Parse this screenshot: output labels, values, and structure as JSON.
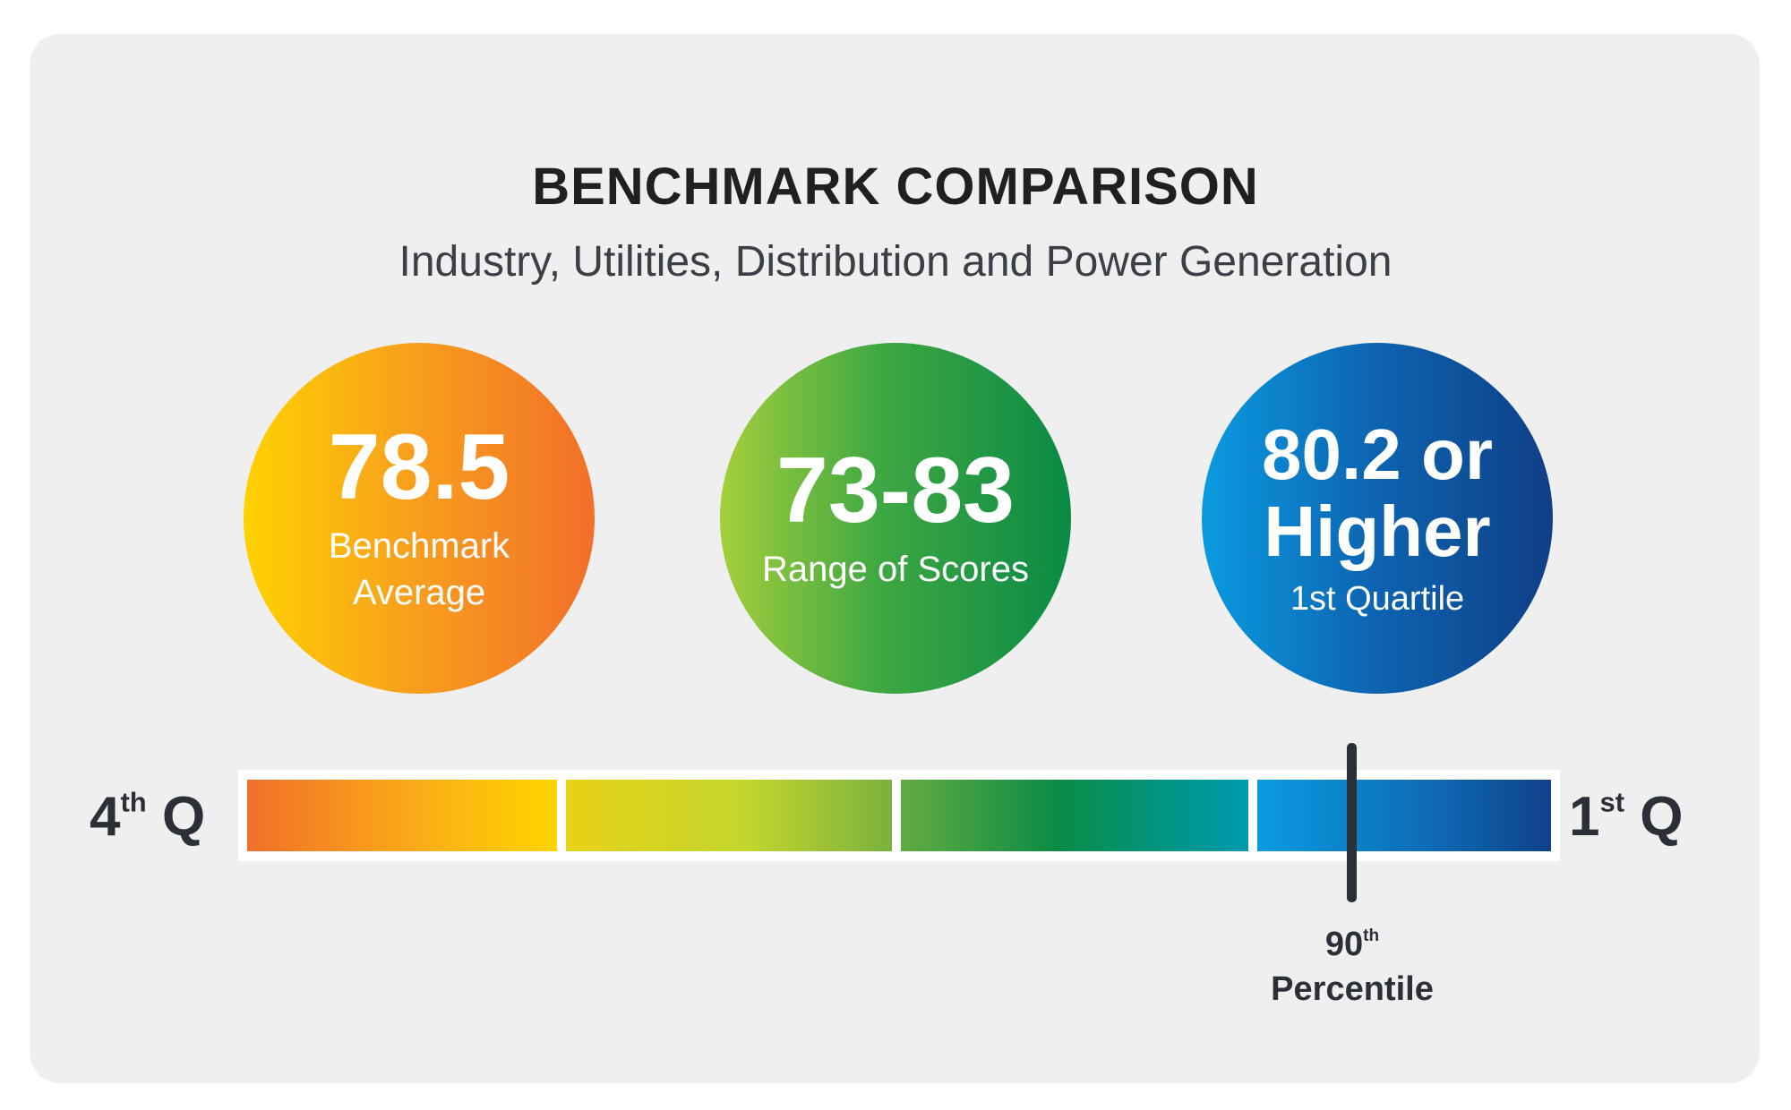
{
  "header": {
    "title": "BENCHMARK COMPARISON",
    "subtitle": "Industry, Utilities, Distribution and Power Generation"
  },
  "circles": [
    {
      "value": "78.5",
      "label_line1": "Benchmark",
      "label_line2": "Average",
      "color_from": "#ffd200",
      "color_to": "#f26f2a"
    },
    {
      "value": "73-83",
      "label": "Range of Scores",
      "color_from": "#a6cf3c",
      "color_to": "#0a8a45"
    },
    {
      "value_line1": "80.2 or",
      "value_line2": "Higher",
      "label": "1st Quartile",
      "color_from": "#0a9be0",
      "color_to": "#0f3f86"
    }
  ],
  "scale": {
    "left_label": {
      "num": "4",
      "sup": "th",
      "suffix": " Q"
    },
    "right_label": {
      "num": "1",
      "sup": "st",
      "suffix": " Q"
    },
    "marker": {
      "num": "90",
      "sup": "th",
      "word": "Percentile",
      "percentile": 90
    }
  }
}
